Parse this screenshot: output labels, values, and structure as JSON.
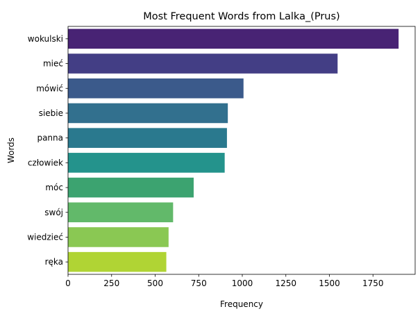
{
  "chart_data": {
    "type": "bar",
    "orientation": "horizontal",
    "title": "Most Frequent Words from Lalka_(Prus)",
    "xlabel": "Frequency",
    "ylabel": "Words",
    "categories": [
      "wokulski",
      "mieć",
      "mówić",
      "siebie",
      "panna",
      "człowiek",
      "móc",
      "swój",
      "wiedzieć",
      "ręka"
    ],
    "values": [
      1897,
      1547,
      1007,
      917,
      912,
      899,
      721,
      603,
      577,
      564
    ],
    "xlim": [
      0,
      1992
    ],
    "xticks": [
      0,
      250,
      500,
      750,
      1000,
      1250,
      1500,
      1750
    ],
    "xtick_labels": [
      "0",
      "250",
      "500",
      "750",
      "1000",
      "1250",
      "1500",
      "1750"
    ],
    "grid": false,
    "colors": [
      "#482374",
      "#433e85",
      "#3b5a8b",
      "#32708e",
      "#2a798e",
      "#24938c",
      "#3ca370",
      "#62b96a",
      "#8ac853",
      "#b0d434"
    ]
  }
}
